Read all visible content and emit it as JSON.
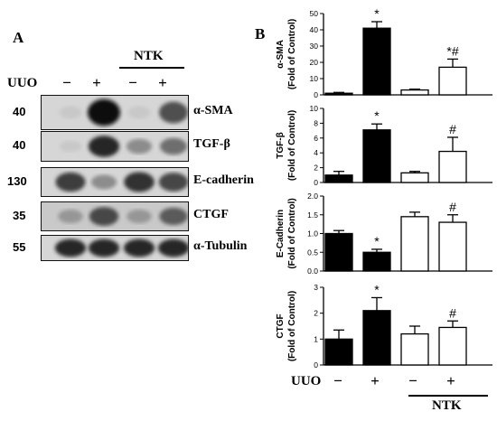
{
  "panel_a": {
    "label": "A",
    "group_label": "NTK",
    "row_label": "UUO",
    "uuo_signs": [
      "−",
      "+",
      "−",
      "+"
    ],
    "blots": [
      {
        "protein": "α-SMA",
        "mw": "40",
        "intensity": [
          0.05,
          1.0,
          0.05,
          0.65
        ]
      },
      {
        "protein": "TGF-β",
        "mw": "40",
        "intensity": [
          0.05,
          0.85,
          0.35,
          0.5
        ]
      },
      {
        "protein": "E-cadherin",
        "mw": "130",
        "intensity": [
          0.75,
          0.35,
          0.8,
          0.7
        ]
      },
      {
        "protein": "CTGF",
        "mw": "35",
        "intensity": [
          0.3,
          0.7,
          0.3,
          0.6
        ]
      },
      {
        "protein": "α-Tubulin",
        "mw": "55",
        "intensity": [
          0.85,
          0.85,
          0.85,
          0.85
        ]
      }
    ]
  },
  "panel_b": {
    "label": "B",
    "row_label": "UUO",
    "uuo_signs": [
      "−",
      "+",
      "−",
      "+"
    ],
    "group_label": "NTK"
  },
  "chart_data": [
    {
      "type": "bar",
      "ylabel": "α-SMA",
      "ylabel2": "(Fold of Control)",
      "ylim": [
        0,
        50
      ],
      "yticks": [
        "0",
        "10",
        "20",
        "30",
        "40",
        "50"
      ],
      "values": [
        1,
        41,
        3,
        17
      ],
      "errors": [
        0.5,
        4,
        0.5,
        5
      ],
      "fills": [
        "#000000",
        "#000000",
        "#ffffff",
        "#ffffff"
      ],
      "annotations": [
        "",
        "*",
        "",
        "*#"
      ]
    },
    {
      "type": "bar",
      "ylabel": "TGF-β",
      "ylabel2": "(Fold of Control)",
      "ylim": [
        0,
        10
      ],
      "yticks": [
        "0",
        "2",
        "4",
        "6",
        "8",
        "10"
      ],
      "values": [
        1,
        7.1,
        1.3,
        4.2
      ],
      "errors": [
        0.5,
        0.8,
        0.2,
        1.9
      ],
      "fills": [
        "#000000",
        "#000000",
        "#ffffff",
        "#ffffff"
      ],
      "annotations": [
        "",
        "*",
        "",
        "#"
      ]
    },
    {
      "type": "bar",
      "ylabel": "E-Cadherin",
      "ylabel2": "(Fold of Control)",
      "ylim": [
        0,
        2.0
      ],
      "yticks": [
        "0.0",
        "0.5",
        "1.0",
        "1.5",
        "2.0"
      ],
      "values": [
        1.0,
        0.5,
        1.45,
        1.3
      ],
      "errors": [
        0.08,
        0.08,
        0.12,
        0.2
      ],
      "fills": [
        "#000000",
        "#000000",
        "#ffffff",
        "#ffffff"
      ],
      "annotations": [
        "",
        "*",
        "",
        "#"
      ]
    },
    {
      "type": "bar",
      "ylabel": "CTGF",
      "ylabel2": "(Fold of Control)",
      "ylim": [
        0,
        3
      ],
      "yticks": [
        "0",
        "1",
        "2",
        "3"
      ],
      "values": [
        1.0,
        2.1,
        1.2,
        1.45
      ],
      "errors": [
        0.35,
        0.5,
        0.3,
        0.25
      ],
      "fills": [
        "#000000",
        "#000000",
        "#ffffff",
        "#ffffff"
      ],
      "annotations": [
        "",
        "*",
        "",
        "#"
      ]
    }
  ]
}
